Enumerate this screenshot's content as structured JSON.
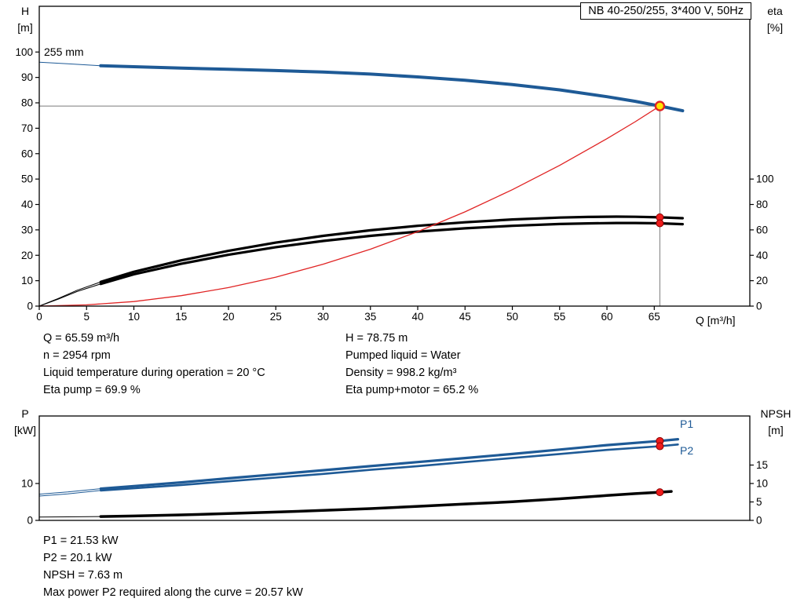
{
  "colors": {
    "curve_blue": "#1e5a96",
    "curve_black": "#000000",
    "system_curve_red": "#e02424",
    "duty_dot_red": "#ee1c1c",
    "duty_point_yellow": "#ffe600",
    "guide_gray": "#7a7a7a"
  },
  "labels": {
    "h": "H",
    "h_unit": "[m]",
    "eta": "eta",
    "eta_unit": "[%]",
    "p": "P",
    "p_unit": "[kW]",
    "npsh": "NPSH",
    "npsh_unit": "[m]"
  },
  "info_top": {
    "left": [
      "Q = 65.59 m³/h",
      "n = 2954 rpm",
      "Liquid temperature during operation = 20 °C",
      "Eta pump = 69.9 %"
    ],
    "right": [
      "H = 78.75 m",
      "Pumped liquid = Water",
      "Density = 998.2 kg/m³",
      "Eta pump+motor = 65.2 %"
    ]
  },
  "info_bottom": [
    "P1 = 21.53 kW",
    "P2 = 20.1 kW",
    "NPSH = 7.63 m",
    "Max power P2 required along the curve = 20.57 kW"
  ],
  "chart_data": [
    {
      "type": "line",
      "title": "NB 40-250/255, 3*400 V, 50Hz",
      "xlabel": "Q [m³/h]",
      "ylabel_left": "H [m]",
      "ylabel_right": "eta [%]",
      "xlim": [
        0,
        75.1
      ],
      "ylim_left": [
        0,
        118
      ],
      "ylim_right": [
        0,
        236
      ],
      "axis_note": "eta axis: 100 % aligns with H = 50 m; grid off",
      "x_ticks": [
        0,
        5,
        10,
        15,
        20,
        25,
        30,
        35,
        40,
        45,
        50,
        55,
        60,
        65
      ],
      "y_ticks_left": [
        0,
        10,
        20,
        30,
        40,
        50,
        60,
        70,
        80,
        90,
        100
      ],
      "y_ticks_right": [
        0,
        20,
        40,
        60,
        80,
        100
      ],
      "duty_point": {
        "Q_m3h": 65.59,
        "H_m": 78.75,
        "eta_pump_pct": 69.9,
        "eta_pump_motor_pct": 65.2
      },
      "series": [
        {
          "name": "QH curve 255 mm",
          "label": "255 mm",
          "axis": "left",
          "color": "#1e5a96",
          "segments": [
            {
              "w": 1,
              "points": [
                [
                  0,
                  96
                ],
                [
                  3,
                  95.4
                ],
                [
                  6.5,
                  94.6
                ]
              ]
            },
            {
              "w": 4,
              "points": [
                [
                  6.5,
                  94.6
                ],
                [
                  10,
                  94.2
                ],
                [
                  15,
                  93.7
                ],
                [
                  20,
                  93.2
                ],
                [
                  25,
                  92.7
                ],
                [
                  30,
                  92.1
                ],
                [
                  35,
                  91.3
                ],
                [
                  40,
                  90.2
                ],
                [
                  45,
                  88.9
                ],
                [
                  50,
                  87.2
                ],
                [
                  55,
                  85.1
                ],
                [
                  60,
                  82.4
                ],
                [
                  63,
                  80.6
                ],
                [
                  65.59,
                  78.75
                ],
                [
                  68,
                  76.9
                ]
              ]
            }
          ]
        },
        {
          "name": "Eta pump",
          "axis": "right",
          "color": "#000000",
          "segments": [
            {
              "w": 1,
              "points": [
                [
                  0,
                  0
                ],
                [
                  2,
                  6
                ],
                [
                  4,
                  12.5
                ],
                [
                  6.5,
                  19
                ]
              ]
            },
            {
              "w": 3.2,
              "points": [
                [
                  6.5,
                  19
                ],
                [
                  10,
                  27
                ],
                [
                  15,
                  36
                ],
                [
                  20,
                  43.5
                ],
                [
                  25,
                  50
                ],
                [
                  30,
                  55.3
                ],
                [
                  35,
                  59.7
                ],
                [
                  40,
                  63.2
                ],
                [
                  45,
                  66
                ],
                [
                  50,
                  68.2
                ],
                [
                  55,
                  69.7
                ],
                [
                  58,
                  70.2
                ],
                [
                  61,
                  70.4
                ],
                [
                  63,
                  70.3
                ],
                [
                  65.59,
                  69.9
                ],
                [
                  68,
                  69.2
                ]
              ]
            }
          ]
        },
        {
          "name": "Eta pump motor",
          "axis": "right",
          "color": "#000000",
          "segments": [
            {
              "w": 1,
              "points": [
                [
                  0,
                  0
                ],
                [
                  2,
                  5.5
                ],
                [
                  4,
                  11.5
                ],
                [
                  6.5,
                  17.5
                ]
              ]
            },
            {
              "w": 3.2,
              "points": [
                [
                  6.5,
                  17.5
                ],
                [
                  10,
                  25
                ],
                [
                  15,
                  33.3
                ],
                [
                  20,
                  40.4
                ],
                [
                  25,
                  46.4
                ],
                [
                  30,
                  51.3
                ],
                [
                  35,
                  55.3
                ],
                [
                  40,
                  58.6
                ],
                [
                  45,
                  61.2
                ],
                [
                  50,
                  63.2
                ],
                [
                  55,
                  64.6
                ],
                [
                  58,
                  65.1
                ],
                [
                  61,
                  65.4
                ],
                [
                  63,
                  65.4
                ],
                [
                  65.59,
                  65.2
                ],
                [
                  68,
                  64.5
                ]
              ]
            }
          ]
        },
        {
          "name": "System curve",
          "axis": "left",
          "color": "#e02424",
          "segments": [
            {
              "w": 1.3,
              "points": [
                [
                  0,
                  0
                ],
                [
                  5,
                  0.5
                ],
                [
                  10,
                  1.8
                ],
                [
                  15,
                  4.1
                ],
                [
                  20,
                  7.3
                ],
                [
                  25,
                  11.4
                ],
                [
                  30,
                  16.5
                ],
                [
                  35,
                  22.4
                ],
                [
                  40,
                  29.3
                ],
                [
                  45,
                  37.1
                ],
                [
                  50,
                  45.8
                ],
                [
                  55,
                  55.4
                ],
                [
                  60,
                  65.9
                ],
                [
                  63,
                  72.6
                ],
                [
                  65.59,
                  78.75
                ]
              ]
            }
          ]
        }
      ],
      "guides": [
        {
          "dir": "h",
          "axis": "left",
          "v": 78.75,
          "q_from": 0,
          "q_to": 65.59
        },
        {
          "dir": "v",
          "axis": "left",
          "q": 65.59,
          "v_from": 0,
          "v_to": 78.75
        }
      ],
      "markers": [
        {
          "name": "eta-pump-duty-dot",
          "q": 65.59,
          "v": 69.9,
          "axis": "right",
          "r": 4.5,
          "fill": "#ee1c1c",
          "stroke": "#8b0000",
          "sw": 1
        },
        {
          "name": "eta-pump-motor-duty-dot",
          "q": 65.59,
          "v": 65.2,
          "axis": "right",
          "r": 4.5,
          "fill": "#ee1c1c",
          "stroke": "#8b0000",
          "sw": 1
        },
        {
          "name": "duty-point-marker",
          "q": 65.59,
          "v": 78.75,
          "axis": "left",
          "r": 5.5,
          "fill": "#ffe600",
          "stroke": "#e02424",
          "sw": 2.4
        }
      ]
    },
    {
      "type": "line",
      "title": "",
      "xlabel": "",
      "ylabel_left": "P [kW]",
      "ylabel_right": "NPSH [m]",
      "xlim": [
        0,
        75.1
      ],
      "ylim_left": [
        0,
        28.3
      ],
      "ylim_right": [
        0,
        28.3
      ],
      "x_ticks": [],
      "y_ticks_left": [
        0,
        10
      ],
      "y_ticks_right": [
        0,
        5,
        10,
        15
      ],
      "duty_values": {
        "P1_kW": 21.53,
        "P2_kW": 20.1,
        "NPSH_m": 7.63,
        "max_P2_kW": 20.57
      },
      "series": [
        {
          "name": "P1",
          "label": "P1",
          "axis": "left",
          "color": "#1e5a96",
          "segments": [
            {
              "w": 1,
              "points": [
                [
                  0,
                  7.1
                ],
                [
                  3,
                  7.7
                ],
                [
                  6.5,
                  8.6
                ]
              ]
            },
            {
              "w": 3.2,
              "points": [
                [
                  6.5,
                  8.6
                ],
                [
                  10,
                  9.3
                ],
                [
                  15,
                  10.3
                ],
                [
                  20,
                  11.4
                ],
                [
                  25,
                  12.5
                ],
                [
                  30,
                  13.6
                ],
                [
                  35,
                  14.7
                ],
                [
                  40,
                  15.8
                ],
                [
                  45,
                  16.9
                ],
                [
                  50,
                  18
                ],
                [
                  55,
                  19.2
                ],
                [
                  60,
                  20.4
                ],
                [
                  65.59,
                  21.53
                ],
                [
                  67.5,
                  22
                ]
              ]
            }
          ]
        },
        {
          "name": "P2",
          "label": "P2",
          "axis": "left",
          "color": "#1e5a96",
          "segments": [
            {
              "w": 1,
              "points": [
                [
                  0,
                  6.6
                ],
                [
                  3,
                  7.2
                ],
                [
                  6.5,
                  8.1
                ]
              ]
            },
            {
              "w": 2.6,
              "points": [
                [
                  6.5,
                  8.1
                ],
                [
                  10,
                  8.7
                ],
                [
                  15,
                  9.6
                ],
                [
                  20,
                  10.6
                ],
                [
                  25,
                  11.6
                ],
                [
                  30,
                  12.6
                ],
                [
                  35,
                  13.7
                ],
                [
                  40,
                  14.7
                ],
                [
                  45,
                  15.8
                ],
                [
                  50,
                  16.9
                ],
                [
                  55,
                  18
                ],
                [
                  60,
                  19.1
                ],
                [
                  65.59,
                  20.1
                ],
                [
                  67.5,
                  20.57
                ]
              ]
            }
          ]
        },
        {
          "name": "NPSH",
          "axis": "right",
          "color": "#000000",
          "segments": [
            {
              "w": 1,
              "points": [
                [
                  0,
                  0.9
                ],
                [
                  3,
                  0.95
                ],
                [
                  6.5,
                  1.05
                ]
              ]
            },
            {
              "w": 3.5,
              "points": [
                [
                  6.5,
                  1.05
                ],
                [
                  10,
                  1.2
                ],
                [
                  15,
                  1.5
                ],
                [
                  20,
                  1.85
                ],
                [
                  25,
                  2.25
                ],
                [
                  30,
                  2.7
                ],
                [
                  35,
                  3.2
                ],
                [
                  40,
                  3.8
                ],
                [
                  45,
                  4.45
                ],
                [
                  50,
                  5.05
                ],
                [
                  55,
                  5.85
                ],
                [
                  60,
                  6.75
                ],
                [
                  63,
                  7.25
                ],
                [
                  65.59,
                  7.63
                ],
                [
                  66.8,
                  7.85
                ]
              ]
            }
          ]
        }
      ],
      "guides": [],
      "markers": [
        {
          "name": "p1-duty-dot",
          "q": 65.59,
          "v": 21.53,
          "axis": "left",
          "r": 4.5,
          "fill": "#ee1c1c",
          "stroke": "#8b0000",
          "sw": 1
        },
        {
          "name": "p2-duty-dot",
          "q": 65.59,
          "v": 20.1,
          "axis": "left",
          "r": 4.5,
          "fill": "#ee1c1c",
          "stroke": "#8b0000",
          "sw": 1
        },
        {
          "name": "npsh-duty-dot",
          "q": 65.59,
          "v": 7.63,
          "axis": "right",
          "r": 4.5,
          "fill": "#ee1c1c",
          "stroke": "#8b0000",
          "sw": 1
        }
      ]
    }
  ]
}
